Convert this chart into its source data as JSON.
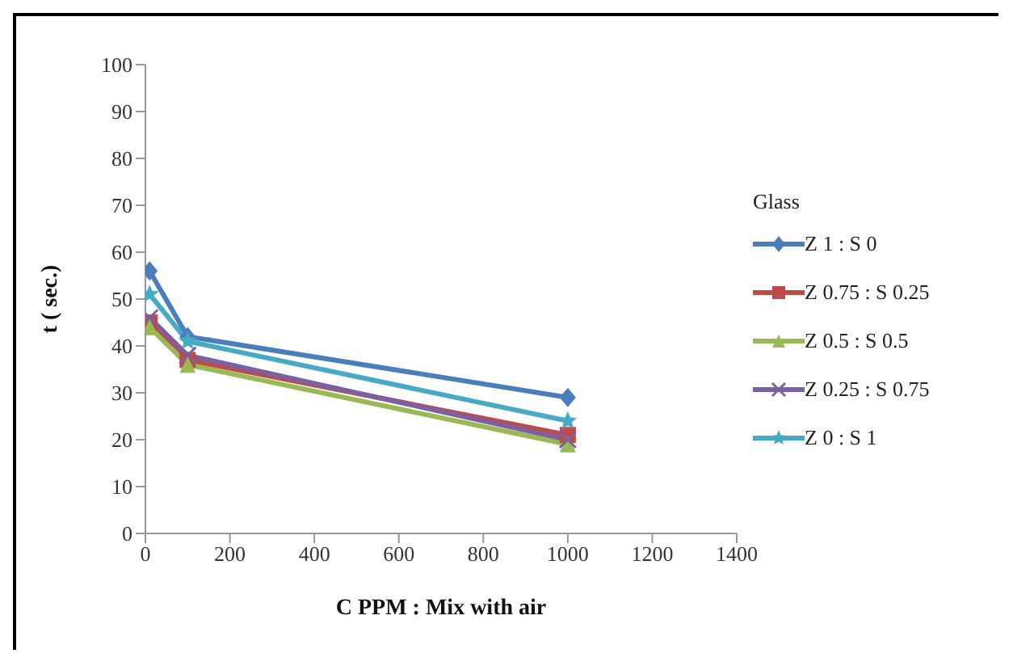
{
  "chart_data": {
    "type": "line",
    "xlabel": "C PPM : Mix with air",
    "ylabel": "t ( sec.)",
    "legend_title": "Glass",
    "legend": "right",
    "grid": false,
    "x": [
      10,
      100,
      1000
    ],
    "xlim": [
      0,
      1400
    ],
    "xticks": [
      0,
      200,
      400,
      600,
      800,
      1000,
      1200,
      1400
    ],
    "ylim": [
      0,
      100
    ],
    "yticks": [
      0,
      10,
      20,
      30,
      40,
      50,
      60,
      70,
      80,
      90,
      100
    ],
    "series": [
      {
        "name": "Z 1 : S 0",
        "color": "#4a7ebb",
        "marker": "diamond",
        "values": [
          56,
          42,
          29
        ]
      },
      {
        "name": "Z 0.75 : S 0.25",
        "color": "#be4b48",
        "marker": "square",
        "values": [
          45,
          37,
          21
        ]
      },
      {
        "name": "Z 0.5 : S 0.5",
        "color": "#98b954",
        "marker": "triangle",
        "values": [
          44,
          36,
          19
        ]
      },
      {
        "name": "Z 0.25 : S 0.75",
        "color": "#7d60a0",
        "marker": "cross",
        "values": [
          46,
          38,
          20
        ]
      },
      {
        "name": "Z 0 : S 1",
        "color": "#46aac5",
        "marker": "star",
        "values": [
          51,
          41,
          24
        ]
      }
    ]
  }
}
